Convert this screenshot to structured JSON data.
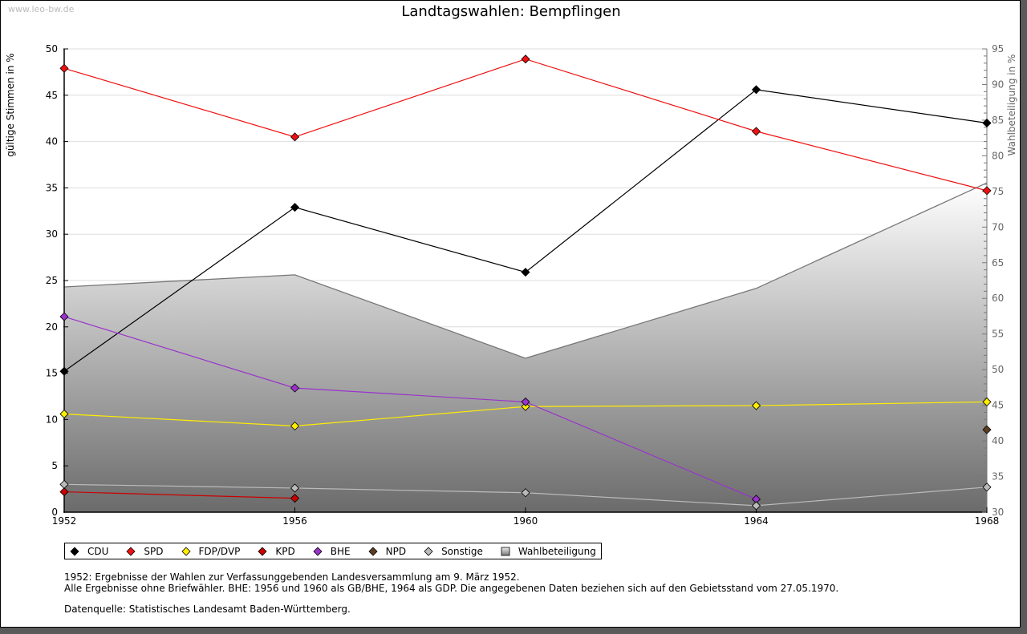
{
  "watermark": "www.leo-bw.de",
  "chart_data": {
    "type": "line",
    "title": "Landtagswahlen: Bempflingen",
    "xlabel": "",
    "ylabel": "gültige Stimmen in %",
    "ylabel_right": "Wahlbeteiligung in %",
    "x": [
      1952,
      1956,
      1960,
      1964,
      1968
    ],
    "x_tick_labels": [
      "1952",
      "1956",
      "1960",
      "1964",
      "1968"
    ],
    "ylim": [
      0,
      50
    ],
    "y_ticks": [
      0,
      5,
      10,
      15,
      20,
      25,
      30,
      35,
      40,
      45,
      50
    ],
    "ylim_right": [
      30,
      95
    ],
    "y_ticks_right": [
      30,
      35,
      40,
      45,
      50,
      55,
      60,
      65,
      70,
      75,
      80,
      85,
      90,
      95
    ],
    "grid": true,
    "legend_position": "bottom",
    "series": [
      {
        "name": "CDU",
        "color": "#000000",
        "axis": "left",
        "values": [
          15.2,
          32.9,
          25.9,
          45.6,
          42.0
        ]
      },
      {
        "name": "SPD",
        "color": "#ee1111",
        "axis": "left",
        "values": [
          47.9,
          40.5,
          48.9,
          41.1,
          34.7
        ]
      },
      {
        "name": "FDP/DVP",
        "color": "#ffee00",
        "axis": "left",
        "values": [
          10.6,
          9.3,
          11.4,
          11.5,
          11.9
        ]
      },
      {
        "name": "KPD",
        "color": "#cc0000",
        "axis": "left",
        "values": [
          2.2,
          1.5,
          null,
          null,
          null
        ]
      },
      {
        "name": "BHE",
        "color": "#9933cc",
        "axis": "left",
        "values": [
          21.1,
          13.4,
          11.9,
          1.4,
          null
        ]
      },
      {
        "name": "NPD",
        "color": "#5c3d22",
        "axis": "left",
        "values": [
          null,
          null,
          null,
          null,
          8.9
        ]
      },
      {
        "name": "Sonstige",
        "color": "#bbbbbb",
        "axis": "left",
        "values": [
          3.0,
          2.6,
          2.1,
          0.7,
          2.7
        ]
      }
    ],
    "area_series": {
      "name": "Wahlbeteiligung",
      "axis": "right",
      "color": "#777777",
      "values": [
        61.6,
        63.3,
        51.6,
        61.4,
        76.2
      ]
    }
  },
  "legend": [
    {
      "label": "CDU",
      "color": "#000000",
      "shape": "diamond"
    },
    {
      "label": "SPD",
      "color": "#ee1111",
      "shape": "diamond"
    },
    {
      "label": "FDP/DVP",
      "color": "#ffee00",
      "shape": "diamond"
    },
    {
      "label": "KPD",
      "color": "#cc0000",
      "shape": "diamond"
    },
    {
      "label": "BHE",
      "color": "#9933cc",
      "shape": "diamond"
    },
    {
      "label": "NPD",
      "color": "#5c3d22",
      "shape": "diamond"
    },
    {
      "label": "Sonstige",
      "color": "#bbbbbb",
      "shape": "diamond"
    },
    {
      "label": "Wahlbeteiligung",
      "color": "#999999",
      "shape": "square"
    }
  ],
  "notes": {
    "line1": "1952: Ergebnisse der Wahlen zur Verfassunggebenden Landesversammlung am 9. März 1952.",
    "line2": "Alle Ergebnisse ohne Briefwähler. BHE: 1956 und 1960 als GB/BHE, 1964 als GDP. Die angegebenen Daten beziehen sich auf den Gebietsstand vom 27.05.1970.",
    "source": "Datenquelle: Statistisches Landesamt Baden-Württemberg."
  }
}
